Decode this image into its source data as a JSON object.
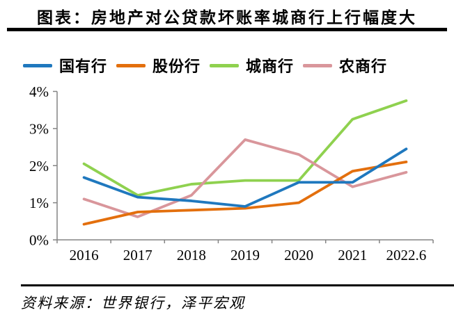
{
  "header": {
    "title": "图表：房地产对公贷款坏账率城商行上行幅度大"
  },
  "footer": {
    "source": "资料来源：世界银行，泽平宏观"
  },
  "colors": {
    "axis": "#848484",
    "text": "#000000",
    "rule": "#000000"
  },
  "chart_data": {
    "type": "line",
    "title": "图表：房地产对公贷款坏账率城商行上行幅度大",
    "categories": [
      "2016",
      "2017",
      "2018",
      "2019",
      "2020",
      "2021",
      "2022.6"
    ],
    "series": [
      {
        "name": "国有行",
        "color": "#1F78BE",
        "values": [
          1.68,
          1.15,
          1.05,
          0.9,
          1.55,
          1.55,
          2.45
        ]
      },
      {
        "name": "股份行",
        "color": "#E36F0D",
        "values": [
          0.42,
          0.75,
          0.8,
          0.85,
          1.0,
          1.85,
          2.1
        ]
      },
      {
        "name": "城商行",
        "color": "#8FD14F",
        "values": [
          2.05,
          1.2,
          1.5,
          1.6,
          1.6,
          3.25,
          3.75
        ]
      },
      {
        "name": "农商行",
        "color": "#D9969B",
        "values": [
          1.1,
          0.62,
          1.2,
          2.7,
          2.3,
          1.43,
          1.82
        ]
      }
    ],
    "ylim": [
      0,
      4
    ],
    "ytick_values": [
      0,
      1,
      2,
      3,
      4
    ],
    "ytick_labels": [
      "0%",
      "1%",
      "2%",
      "3%",
      "4%"
    ],
    "xlabel": "",
    "ylabel": "",
    "grid": false,
    "legend_position": "top",
    "source": "资料来源：世界银行，泽平宏观"
  }
}
